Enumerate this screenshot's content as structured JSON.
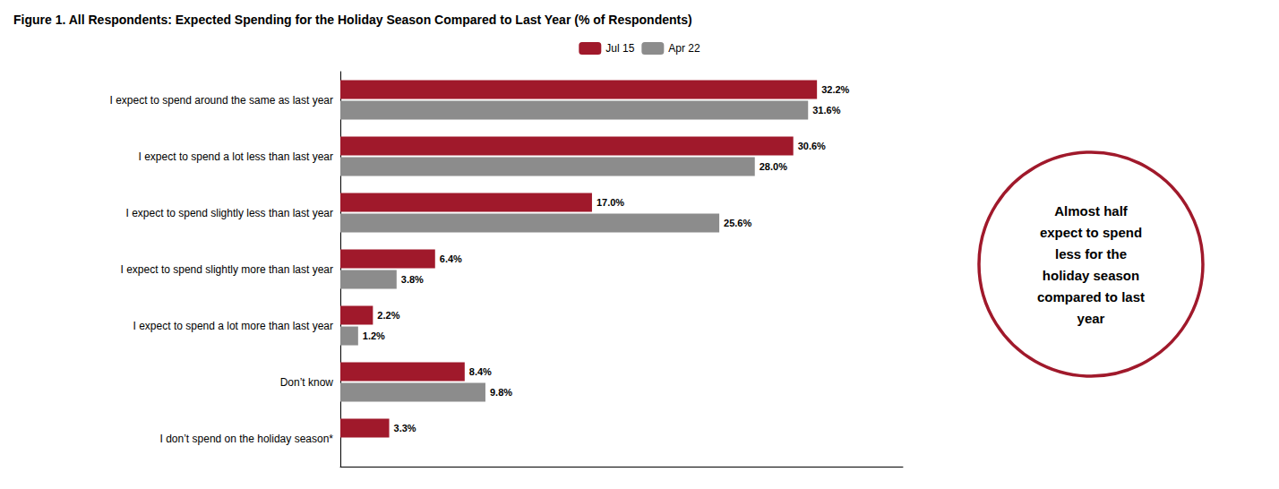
{
  "chart_data": {
    "type": "bar",
    "orientation": "horizontal",
    "title": "Figure 1. All Respondents: Expected Spending for the Holiday Season Compared to Last Year (% of Respondents)",
    "categories": [
      "I expect to spend around the same as last year",
      "I expect to spend a lot less than last year",
      "I expect to spend slightly less than last year",
      "I expect to spend slightly more than last year",
      "I expect to spend a lot more than last year",
      "Don’t know",
      "I don’t spend on the holiday season*"
    ],
    "series": [
      {
        "name": "Jul 15",
        "color": "#A0192B",
        "values": [
          32.2,
          30.6,
          17.0,
          6.4,
          2.2,
          8.4,
          3.3
        ],
        "value_labels": [
          "32.2%",
          "30.6%",
          "17.0%",
          "6.4%",
          "2.2%",
          "8.4%",
          "3.3%"
        ]
      },
      {
        "name": "Apr 22",
        "color": "#8C8C8C",
        "values": [
          31.6,
          28.0,
          25.6,
          3.8,
          1.2,
          9.8,
          null
        ],
        "value_labels": [
          "31.6%",
          "28.0%",
          "25.6%",
          "3.8%",
          "1.2%",
          "9.8%",
          null
        ]
      }
    ],
    "xlim": [
      0,
      38
    ],
    "xticks": [],
    "tick_labels": "y",
    "grid": false,
    "legend": "top",
    "data_labels": true,
    "annotations": [
      {
        "text": "Almost half\nexpect to spend\nless for the\nholiday season\ncompared to last\nyear",
        "color": "#A0192B"
      }
    ]
  }
}
